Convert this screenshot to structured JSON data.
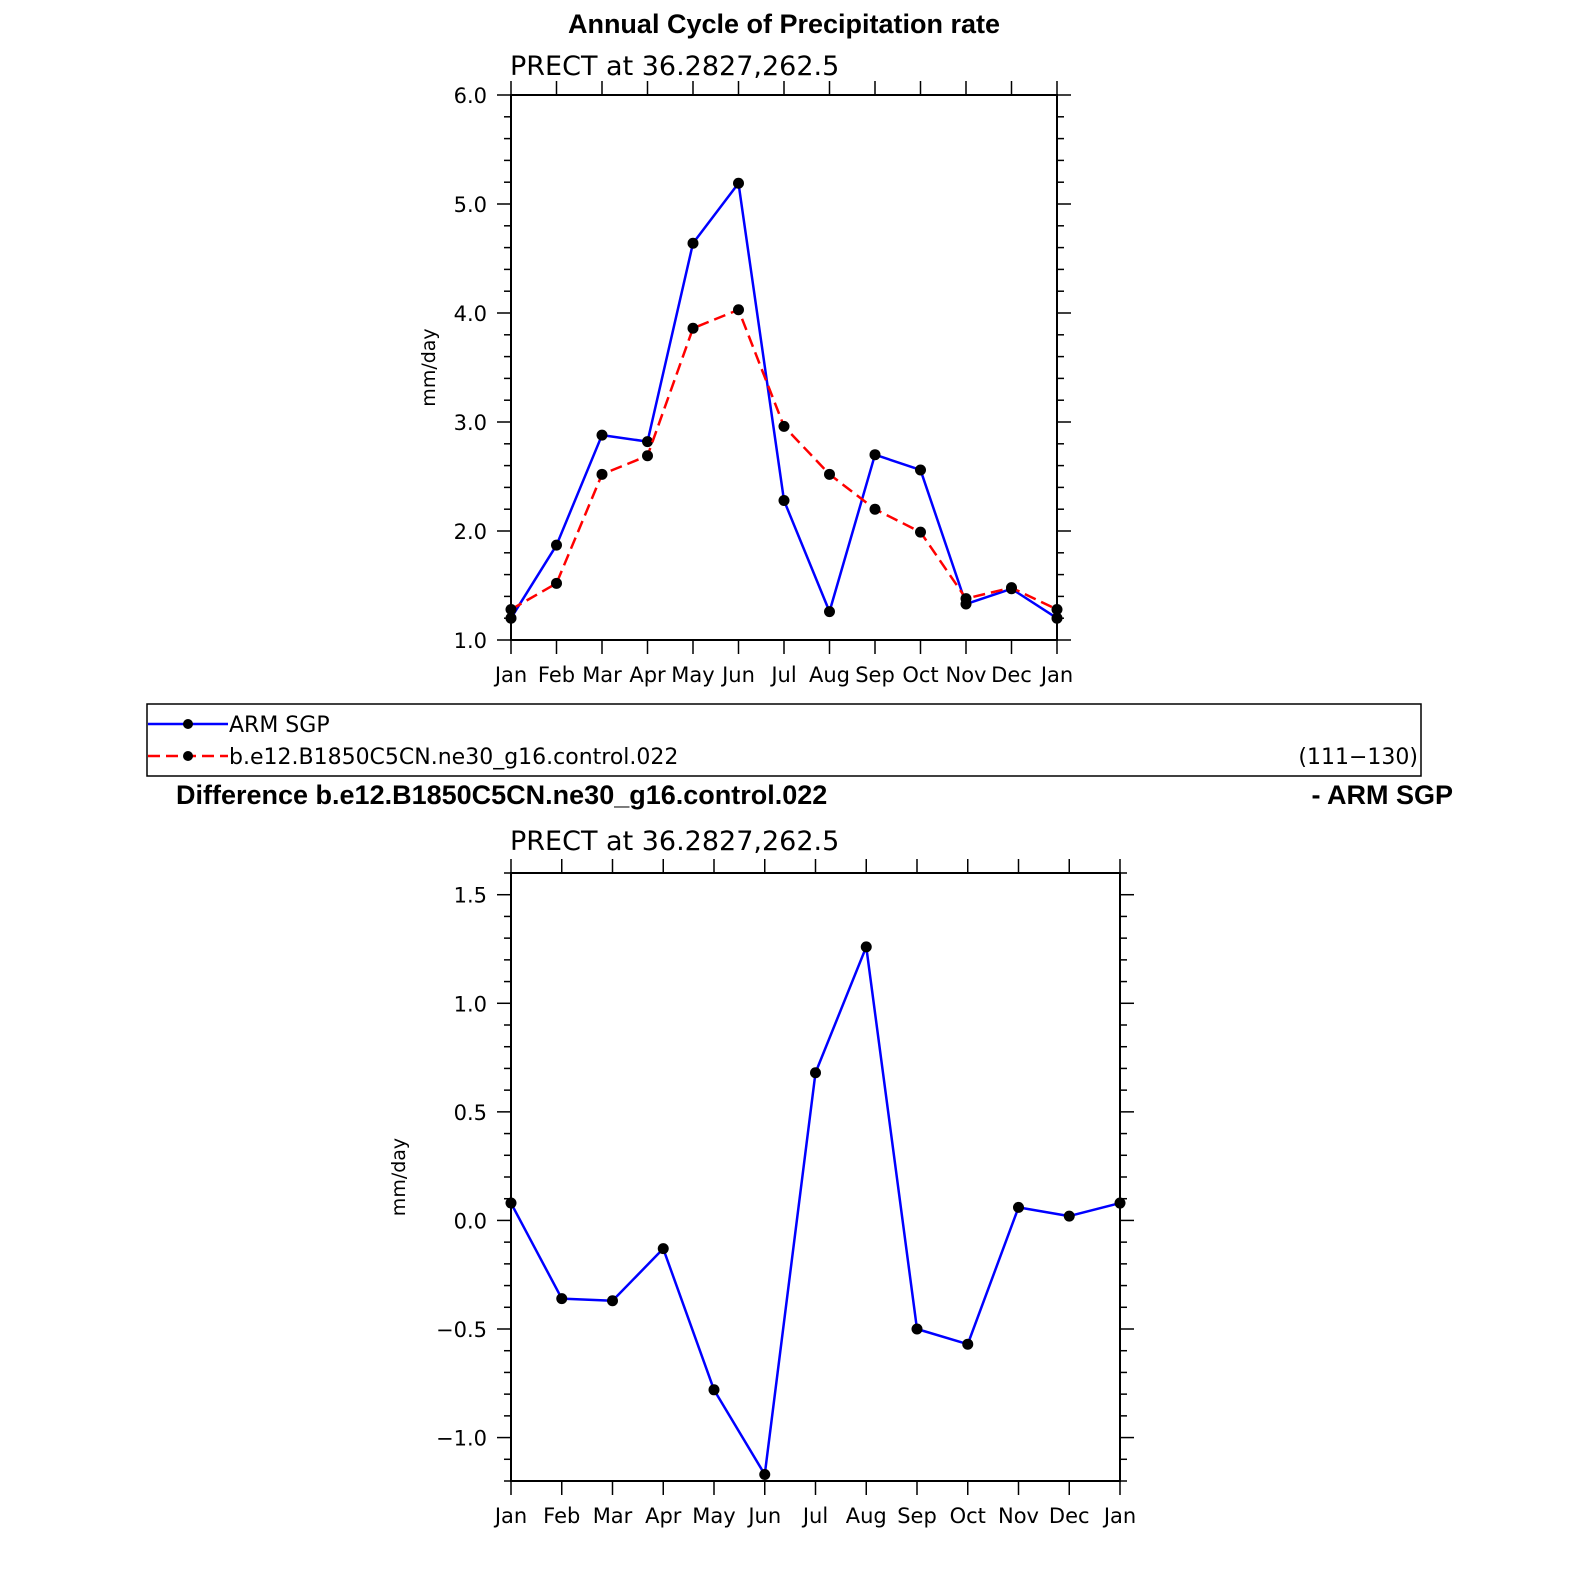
{
  "figure": {
    "title": "Annual Cycle of Precipitation rate",
    "diff_title": "Difference b.e12.B1850C5CN.ne30_g16.control.022",
    "diff_title_suffix": "- ARM SGP",
    "legend": {
      "entries": [
        {
          "label": "ARM SGP",
          "color": "#0000ff",
          "style": "solid"
        },
        {
          "label": "b.e12.B1850C5CN.ne30_g16.control.022",
          "color": "#ff0000",
          "style": "dashed",
          "years": "(111−130)"
        }
      ]
    }
  },
  "chart_data": [
    {
      "type": "line",
      "subtitle": "PRECT  at  36.2827,262.5",
      "ylabel": "mm/day",
      "categories": [
        "Jan",
        "Feb",
        "Mar",
        "Apr",
        "May",
        "Jun",
        "Jul",
        "Aug",
        "Sep",
        "Oct",
        "Nov",
        "Dec",
        "Jan"
      ],
      "ylim": [
        1.0,
        6.0
      ],
      "yticks": [
        1.0,
        2.0,
        3.0,
        4.0,
        5.0,
        6.0
      ],
      "ytick_labels": [
        "1.0",
        "2.0",
        "3.0",
        "4.0",
        "5.0",
        "6.0"
      ],
      "series": [
        {
          "name": "ARM SGP",
          "color": "#0000ff",
          "dash": false,
          "values": [
            1.2,
            1.87,
            2.88,
            2.82,
            4.64,
            5.19,
            2.28,
            1.26,
            2.7,
            2.56,
            1.33,
            1.47,
            1.2
          ]
        },
        {
          "name": "b.e12.B1850C5CN.ne30_g16.control.022",
          "color": "#ff0000",
          "dash": true,
          "values": [
            1.28,
            1.52,
            2.52,
            2.69,
            3.86,
            4.03,
            2.96,
            2.52,
            2.2,
            1.99,
            1.38,
            1.48,
            1.28
          ]
        }
      ]
    },
    {
      "type": "line",
      "subtitle": "PRECT  at  36.2827,262.5",
      "ylabel": "mm/day",
      "categories": [
        "Jan",
        "Feb",
        "Mar",
        "Apr",
        "May",
        "Jun",
        "Jul",
        "Aug",
        "Sep",
        "Oct",
        "Nov",
        "Dec",
        "Jan"
      ],
      "ylim": [
        -1.2,
        1.6
      ],
      "yticks": [
        -1.0,
        -0.5,
        0.0,
        0.5,
        1.0,
        1.5
      ],
      "ytick_labels": [
        "−1.0",
        "−0.5",
        "0.0",
        "0.5",
        "1.0",
        "1.5"
      ],
      "series": [
        {
          "color": "#0000ff",
          "dash": false,
          "values": [
            0.08,
            -0.36,
            -0.37,
            -0.13,
            -0.78,
            -1.17,
            0.68,
            1.26,
            -0.5,
            -0.57,
            0.06,
            0.02,
            0.08
          ]
        }
      ]
    }
  ]
}
